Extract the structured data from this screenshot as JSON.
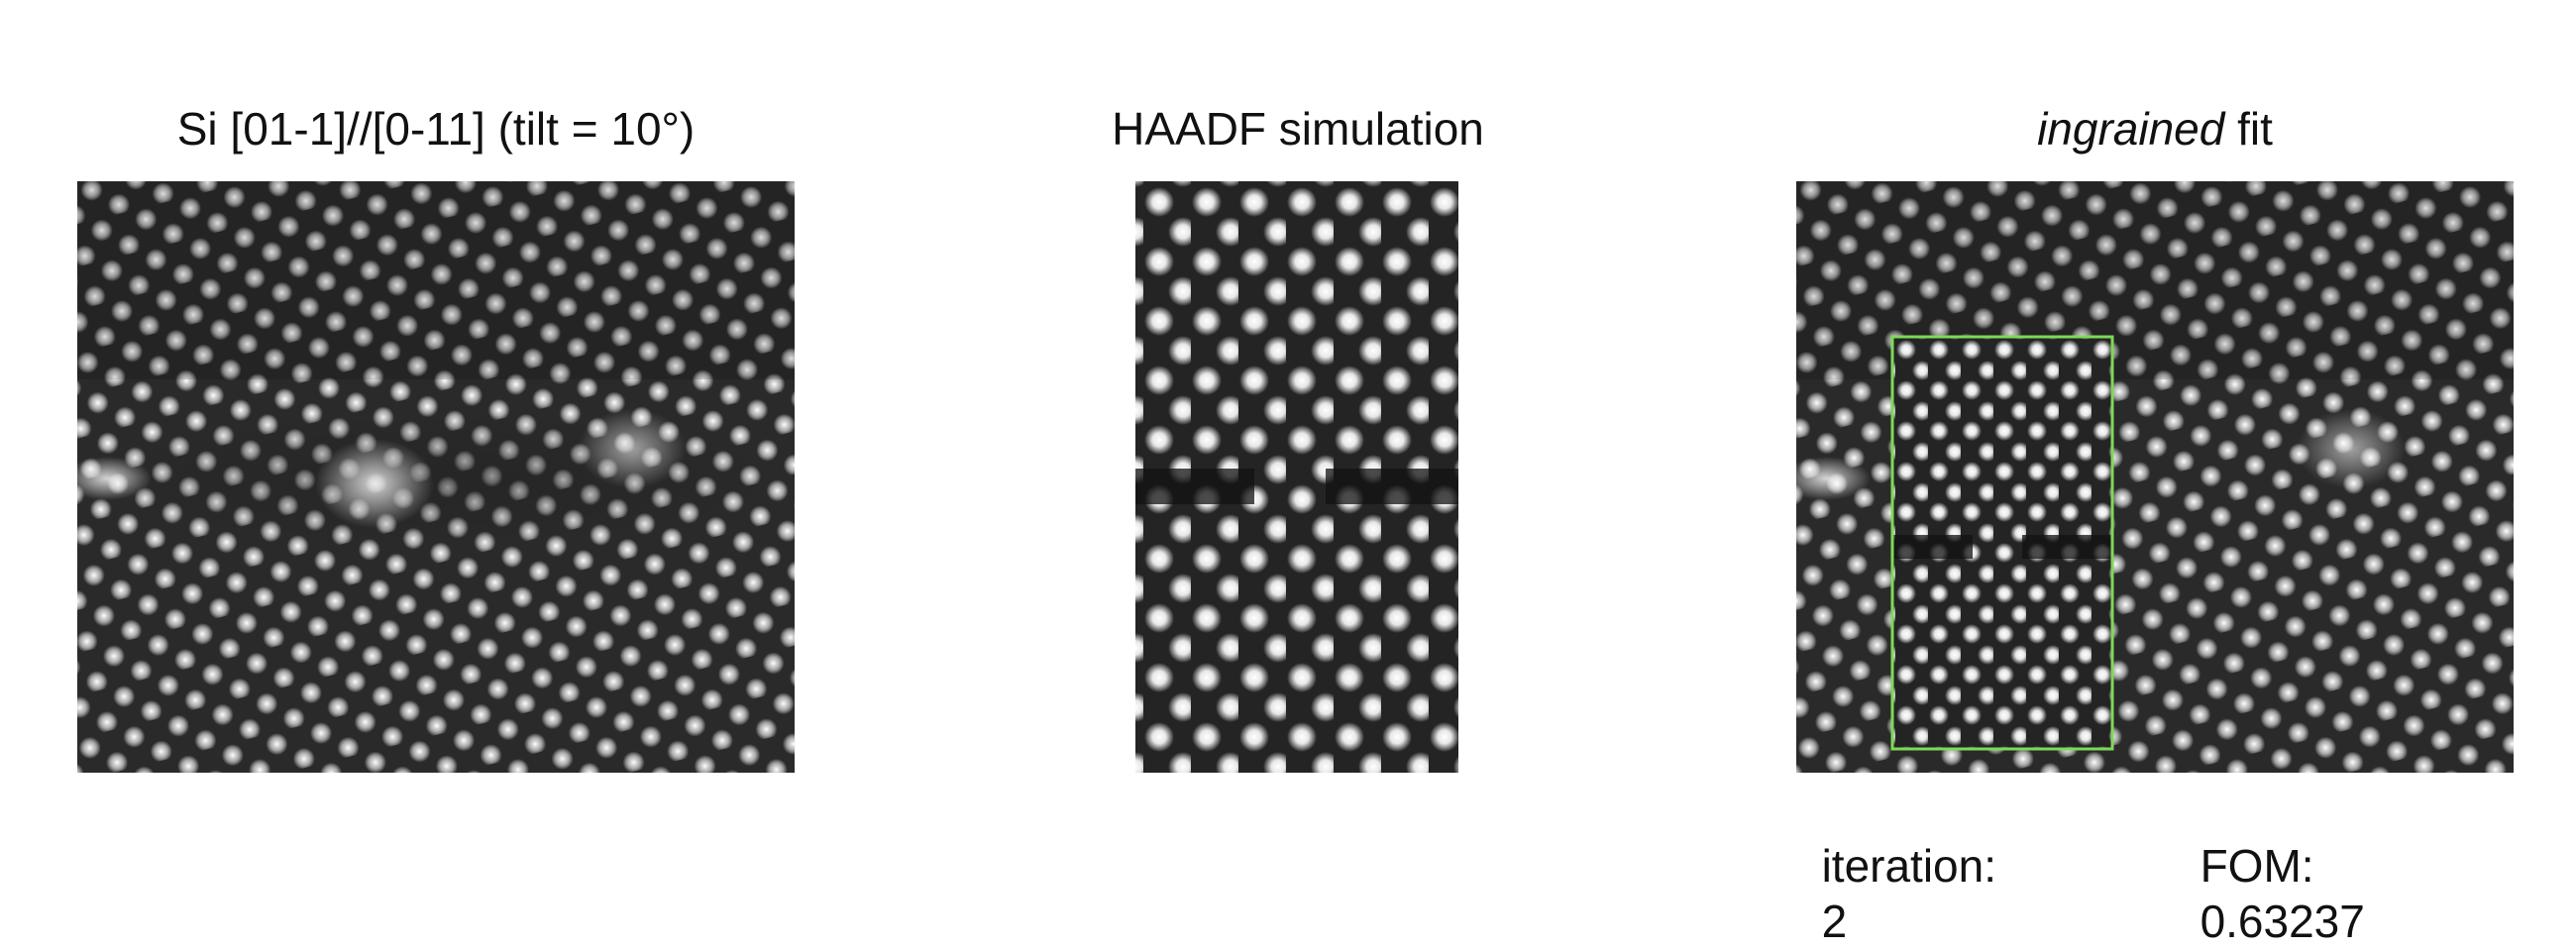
{
  "panels": {
    "experimental": {
      "title": "Si [01-1]//[0-11] (tilt = 10°)",
      "image": "experimental-haadf-stem-micrograph"
    },
    "simulation": {
      "title": "HAADF simulation",
      "image": "simulated-haadf-image"
    },
    "fit": {
      "title_emph": "ingrained",
      "title_rest": " fit",
      "image": "fitted-overlay-image",
      "fit_box_color": "#7ed957"
    }
  },
  "status": {
    "iteration_label": "iteration:",
    "iteration_value": "2",
    "fom_label": "FOM:",
    "fom_value": "0.63237"
  }
}
